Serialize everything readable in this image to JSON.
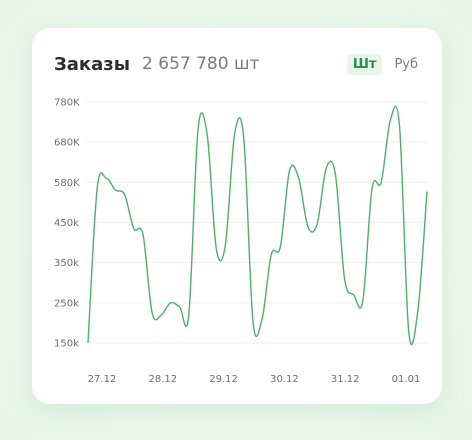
{
  "header": {
    "title": "Заказы",
    "total": "2 657 780 шт",
    "toggles": [
      "Шт",
      "Руб"
    ],
    "active_toggle": "Шт"
  },
  "chart_data": {
    "type": "line",
    "line_color": "#4caf6a",
    "y_ticks": [
      "780K",
      "680K",
      "580K",
      "450k",
      "350k",
      "250k",
      "150k"
    ],
    "x_ticks": [
      "27.12",
      "28.12",
      "29.12",
      "30.12",
      "31.12",
      "01.01"
    ],
    "grid": true,
    "series": [
      {
        "values": [
          150,
          560,
          590,
          555,
          540,
          435,
          420,
          225,
          220,
          250,
          240,
          220,
          710,
          700,
          385,
          395,
          700,
          690,
          205,
          210,
          370,
          390,
          610,
          590,
          440,
          445,
          615,
          600,
          310,
          270,
          255,
          560,
          580,
          735,
          720,
          180,
          230,
          550
        ]
      }
    ]
  }
}
